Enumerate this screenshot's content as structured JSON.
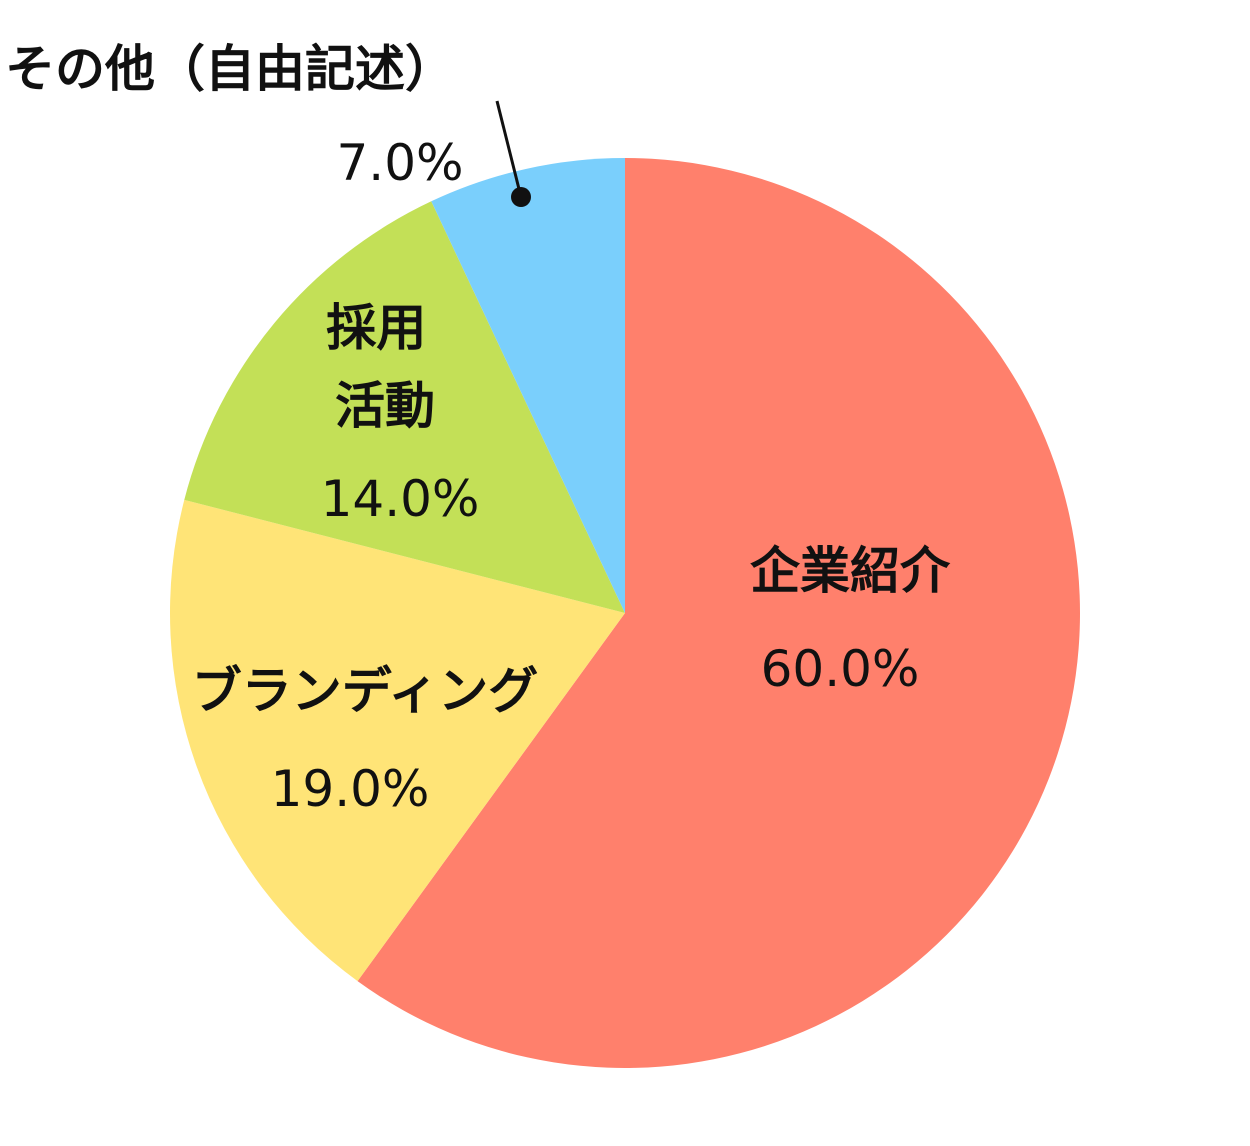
{
  "chart_data": {
    "type": "pie",
    "slices": [
      {
        "label": "企業紹介",
        "value": 60.0,
        "value_label": "60.0%",
        "color": "#FF806C"
      },
      {
        "label": "ブランディング",
        "value": 19.0,
        "value_label": "19.0%",
        "color": "#FFE477"
      },
      {
        "label": "採用\n活動",
        "value": 14.0,
        "value_label": "14.0%",
        "color": "#C3E057"
      },
      {
        "label": "その他（自由記述）",
        "value": 7.0,
        "value_label": "7.0%",
        "color": "#7ACFFC"
      }
    ],
    "start_angle": "12 o'clock",
    "direction": "clockwise",
    "legend": "none"
  }
}
